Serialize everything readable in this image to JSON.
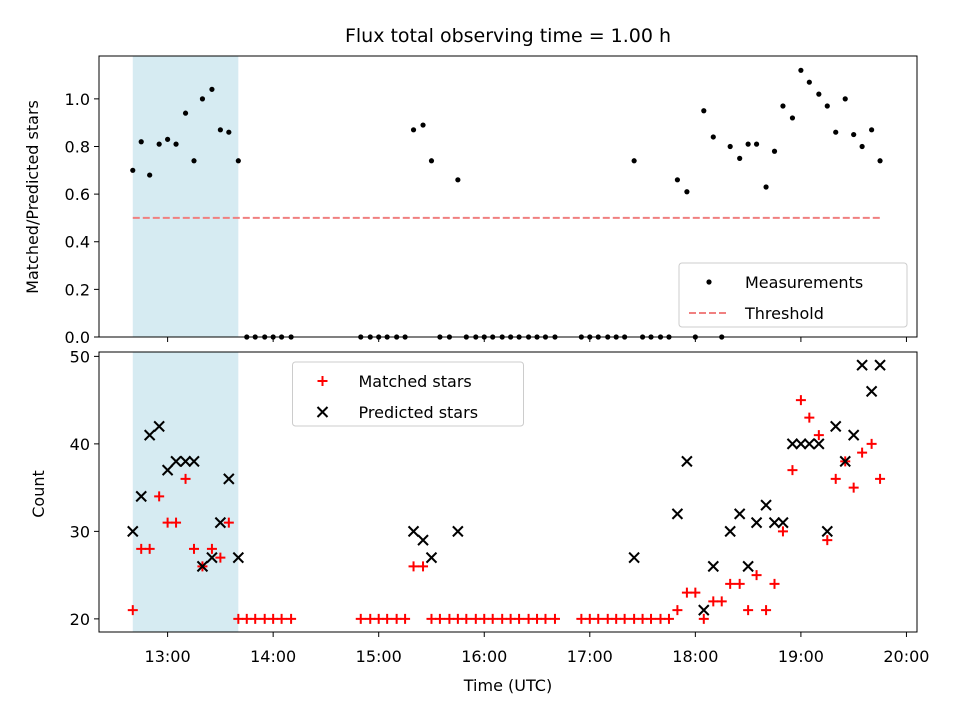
{
  "chart_data": {
    "title": "Flux total observing time = 1.00 h",
    "xlabel": "Time (UTC)",
    "x_ticks": [
      {
        "hour": 13,
        "label": "13:00"
      },
      {
        "hour": 14,
        "label": "14:00"
      },
      {
        "hour": 15,
        "label": "15:00"
      },
      {
        "hour": 16,
        "label": "16:00"
      },
      {
        "hour": 17,
        "label": "17:00"
      },
      {
        "hour": 18,
        "label": "18:00"
      },
      {
        "hour": 19,
        "label": "19:00"
      },
      {
        "hour": 20,
        "label": "20:00"
      }
    ],
    "xlim": [
      12.35,
      20.1
    ],
    "shaded_span": [
      12.67,
      13.67
    ],
    "shade_color": "#add8e6",
    "panels": [
      {
        "id": "ratio",
        "type": "scatter",
        "ylabel": "Matched/Predicted stars",
        "ylim": [
          0,
          1.18
        ],
        "y_ticks": [
          {
            "v": 0.0,
            "label": "0.0"
          },
          {
            "v": 0.2,
            "label": "0.2"
          },
          {
            "v": 0.4,
            "label": "0.4"
          },
          {
            "v": 0.6,
            "label": "0.6"
          },
          {
            "v": 0.8,
            "label": "0.8"
          },
          {
            "v": 1.0,
            "label": "1.0"
          }
        ],
        "legend": {
          "position": "lower right",
          "entries": [
            {
              "label": "Measurements",
              "kind": "dot"
            },
            {
              "label": "Threshold",
              "kind": "dashed"
            }
          ]
        },
        "threshold": {
          "value": 0.5,
          "x_range": [
            12.67,
            19.75
          ],
          "color": "#f08080"
        },
        "series": [
          {
            "kind": "dot",
            "color": "#000000",
            "points": [
              [
                12.67,
                0.7
              ],
              [
                12.75,
                0.82
              ],
              [
                12.83,
                0.68
              ],
              [
                12.92,
                0.81
              ],
              [
                13.0,
                0.83
              ],
              [
                13.08,
                0.81
              ],
              [
                13.17,
                0.94
              ],
              [
                13.25,
                0.74
              ],
              [
                13.33,
                1.0
              ],
              [
                13.42,
                1.04
              ],
              [
                13.5,
                0.87
              ],
              [
                13.58,
                0.86
              ],
              [
                13.67,
                0.74
              ],
              [
                13.75,
                0.0
              ],
              [
                13.83,
                0.0
              ],
              [
                13.92,
                0.0
              ],
              [
                14.0,
                0.0
              ],
              [
                14.08,
                0.0
              ],
              [
                14.17,
                0.0
              ],
              [
                14.83,
                0.0
              ],
              [
                14.92,
                0.0
              ],
              [
                15.0,
                0.0
              ],
              [
                15.08,
                0.0
              ],
              [
                15.17,
                0.0
              ],
              [
                15.25,
                0.0
              ],
              [
                15.33,
                0.87
              ],
              [
                15.42,
                0.89
              ],
              [
                15.5,
                0.74
              ],
              [
                15.58,
                0.0
              ],
              [
                15.67,
                0.0
              ],
              [
                15.75,
                0.66
              ],
              [
                15.83,
                0.0
              ],
              [
                15.92,
                0.0
              ],
              [
                16.0,
                0.0
              ],
              [
                16.08,
                0.0
              ],
              [
                16.17,
                0.0
              ],
              [
                16.25,
                0.0
              ],
              [
                16.33,
                0.0
              ],
              [
                16.42,
                0.0
              ],
              [
                16.5,
                0.0
              ],
              [
                16.58,
                0.0
              ],
              [
                16.67,
                0.0
              ],
              [
                16.92,
                0.0
              ],
              [
                17.0,
                0.0
              ],
              [
                17.08,
                0.0
              ],
              [
                17.17,
                0.0
              ],
              [
                17.25,
                0.0
              ],
              [
                17.33,
                0.0
              ],
              [
                17.42,
                0.74
              ],
              [
                17.5,
                0.0
              ],
              [
                17.58,
                0.0
              ],
              [
                17.67,
                0.0
              ],
              [
                17.75,
                0.0
              ],
              [
                17.83,
                0.66
              ],
              [
                17.92,
                0.61
              ],
              [
                18.0,
                0.0
              ],
              [
                18.08,
                0.95
              ],
              [
                18.17,
                0.84
              ],
              [
                18.25,
                0.0
              ],
              [
                18.33,
                0.8
              ],
              [
                18.42,
                0.75
              ],
              [
                18.5,
                0.81
              ],
              [
                18.58,
                0.81
              ],
              [
                18.67,
                0.63
              ],
              [
                18.75,
                0.78
              ],
              [
                18.83,
                0.97
              ],
              [
                18.92,
                0.92
              ],
              [
                19.0,
                1.12
              ],
              [
                19.08,
                1.07
              ],
              [
                19.17,
                1.02
              ],
              [
                19.25,
                0.97
              ],
              [
                19.33,
                0.86
              ],
              [
                19.42,
                1.0
              ],
              [
                19.5,
                0.85
              ],
              [
                19.58,
                0.8
              ],
              [
                19.67,
                0.87
              ],
              [
                19.75,
                0.74
              ]
            ]
          }
        ]
      },
      {
        "id": "count",
        "type": "scatter",
        "ylabel": "Count",
        "ylim": [
          18.5,
          50.5
        ],
        "y_ticks": [
          {
            "v": 20,
            "label": "20"
          },
          {
            "v": 30,
            "label": "30"
          },
          {
            "v": 40,
            "label": "40"
          },
          {
            "v": 50,
            "label": "50"
          }
        ],
        "legend": {
          "position": "upper center",
          "entries": [
            {
              "label": "Matched stars",
              "kind": "plus"
            },
            {
              "label": "Predicted stars",
              "kind": "cross"
            }
          ]
        },
        "series": [
          {
            "kind": "plus",
            "color": "#ff0000",
            "points": [
              [
                12.67,
                21
              ],
              [
                12.75,
                28
              ],
              [
                12.83,
                28
              ],
              [
                12.92,
                34
              ],
              [
                13.0,
                31
              ],
              [
                13.08,
                31
              ],
              [
                13.17,
                36
              ],
              [
                13.25,
                28
              ],
              [
                13.33,
                26
              ],
              [
                13.42,
                28
              ],
              [
                13.5,
                27
              ],
              [
                13.58,
                31
              ],
              [
                13.67,
                20
              ],
              [
                13.75,
                20
              ],
              [
                13.83,
                20
              ],
              [
                13.92,
                20
              ],
              [
                14.0,
                20
              ],
              [
                14.08,
                20
              ],
              [
                14.17,
                20
              ],
              [
                14.83,
                20
              ],
              [
                14.92,
                20
              ],
              [
                15.0,
                20
              ],
              [
                15.08,
                20
              ],
              [
                15.17,
                20
              ],
              [
                15.25,
                20
              ],
              [
                15.33,
                26
              ],
              [
                15.42,
                26
              ],
              [
                15.5,
                20
              ],
              [
                15.58,
                20
              ],
              [
                15.67,
                20
              ],
              [
                15.75,
                20
              ],
              [
                15.83,
                20
              ],
              [
                15.92,
                20
              ],
              [
                16.0,
                20
              ],
              [
                16.08,
                20
              ],
              [
                16.17,
                20
              ],
              [
                16.25,
                20
              ],
              [
                16.33,
                20
              ],
              [
                16.42,
                20
              ],
              [
                16.5,
                20
              ],
              [
                16.58,
                20
              ],
              [
                16.67,
                20
              ],
              [
                16.92,
                20
              ],
              [
                17.0,
                20
              ],
              [
                17.08,
                20
              ],
              [
                17.17,
                20
              ],
              [
                17.25,
                20
              ],
              [
                17.33,
                20
              ],
              [
                17.42,
                20
              ],
              [
                17.5,
                20
              ],
              [
                17.58,
                20
              ],
              [
                17.67,
                20
              ],
              [
                17.75,
                20
              ],
              [
                17.83,
                21
              ],
              [
                17.92,
                23
              ],
              [
                18.0,
                23
              ],
              [
                18.08,
                20
              ],
              [
                18.17,
                22
              ],
              [
                18.25,
                22
              ],
              [
                18.33,
                24
              ],
              [
                18.42,
                24
              ],
              [
                18.5,
                21
              ],
              [
                18.58,
                25
              ],
              [
                18.67,
                21
              ],
              [
                18.75,
                24
              ],
              [
                18.83,
                30
              ],
              [
                18.92,
                37
              ],
              [
                19.0,
                45
              ],
              [
                19.08,
                43
              ],
              [
                19.17,
                41
              ],
              [
                19.25,
                29
              ],
              [
                19.33,
                36
              ],
              [
                19.42,
                38
              ],
              [
                19.5,
                35
              ],
              [
                19.58,
                39
              ],
              [
                19.67,
                40
              ],
              [
                19.75,
                36
              ]
            ]
          },
          {
            "kind": "cross",
            "color": "#000000",
            "points": [
              [
                12.67,
                30
              ],
              [
                12.75,
                34
              ],
              [
                12.83,
                41
              ],
              [
                12.92,
                42
              ],
              [
                13.0,
                37
              ],
              [
                13.08,
                38
              ],
              [
                13.17,
                38
              ],
              [
                13.25,
                38
              ],
              [
                13.33,
                26
              ],
              [
                13.42,
                27
              ],
              [
                13.5,
                31
              ],
              [
                13.58,
                36
              ],
              [
                13.67,
                27
              ],
              [
                15.33,
                30
              ],
              [
                15.42,
                29
              ],
              [
                15.5,
                27
              ],
              [
                15.75,
                30
              ],
              [
                17.42,
                27
              ],
              [
                17.83,
                32
              ],
              [
                17.92,
                38
              ],
              [
                18.08,
                21
              ],
              [
                18.17,
                26
              ],
              [
                18.33,
                30
              ],
              [
                18.42,
                32
              ],
              [
                18.5,
                26
              ],
              [
                18.58,
                31
              ],
              [
                18.67,
                33
              ],
              [
                18.75,
                31
              ],
              [
                18.83,
                31
              ],
              [
                18.92,
                40
              ],
              [
                19.0,
                40
              ],
              [
                19.08,
                40
              ],
              [
                19.17,
                40
              ],
              [
                19.25,
                30
              ],
              [
                19.33,
                42
              ],
              [
                19.42,
                38
              ],
              [
                19.5,
                41
              ],
              [
                19.58,
                49
              ],
              [
                19.67,
                46
              ],
              [
                19.75,
                49
              ]
            ]
          }
        ]
      }
    ]
  }
}
